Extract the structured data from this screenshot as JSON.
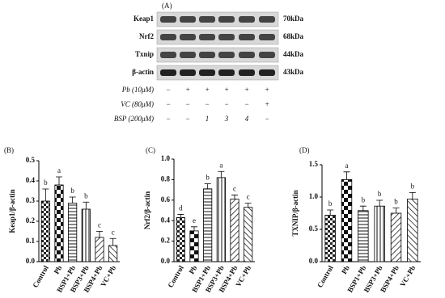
{
  "blot": {
    "panel": "(A)",
    "proteins": [
      {
        "name": "Keap1",
        "size": "70kDa"
      },
      {
        "name": "Nrf2",
        "size": "68kDa"
      },
      {
        "name": "Txnip",
        "size": "44kDa"
      },
      {
        "name": "β-actin",
        "size": "43kDa"
      }
    ],
    "treatments": [
      {
        "label": "Pb (10μM)",
        "signs": [
          "−",
          "+",
          "+",
          "+",
          "+",
          "+"
        ]
      },
      {
        "label": "VC (80μM)",
        "signs": [
          "−",
          "−",
          "−",
          "−",
          "−",
          "+"
        ]
      },
      {
        "label": "BSP (200μM)",
        "signs": [
          "−",
          "−",
          "1",
          "3",
          "4",
          "−"
        ]
      }
    ]
  },
  "chart_data": [
    {
      "type": "bar",
      "panel": "(B)",
      "y_label": "Keap1/β-actin",
      "categories": [
        "Control",
        "Pb",
        "BSP1+Pb",
        "BSP3+Pb",
        "BSP4+Pb",
        "VC+Pb"
      ],
      "values": [
        0.3,
        0.38,
        0.29,
        0.26,
        0.12,
        0.08
      ],
      "errors": [
        0.06,
        0.04,
        0.03,
        0.035,
        0.03,
        0.035
      ],
      "annotations": [
        "b",
        "a",
        "b",
        "b",
        "c",
        "c"
      ],
      "ylim": [
        0,
        0.5
      ],
      "yticks": [
        {
          "value": 0,
          "label": "0.0"
        },
        0.1,
        0.2,
        0.3,
        0.4,
        0.5
      ]
    },
    {
      "type": "bar",
      "panel": "(C)",
      "y_label": "Nrf2/β-actin",
      "categories": [
        "Control",
        "Pb",
        "BSP1+Pb",
        "BSP3+Pb",
        "BSP4+Pb",
        "VC+Pb"
      ],
      "values": [
        0.43,
        0.3,
        0.71,
        0.82,
        0.61,
        0.53
      ],
      "errors": [
        0.03,
        0.04,
        0.05,
        0.06,
        0.04,
        0.04
      ],
      "annotations": [
        "d",
        "e",
        "b",
        "a",
        "c",
        "c"
      ],
      "ylim": [
        0,
        1.0
      ],
      "yticks": [
        {
          "value": 0,
          "label": "0.0"
        },
        0.2,
        0.4,
        0.6,
        0.8,
        {
          "value": 1,
          "label": "1.0"
        }
      ]
    },
    {
      "type": "bar",
      "panel": "(D)",
      "y_label": "TXNIP/β-actin",
      "categories": [
        "Control",
        "Pb",
        "BSP1+Pb",
        "BSP3+Pb",
        "BSP4+Pb",
        "VC+Pb"
      ],
      "values": [
        0.72,
        1.27,
        0.79,
        0.86,
        0.75,
        0.97
      ],
      "errors": [
        0.08,
        0.12,
        0.07,
        0.09,
        0.08,
        0.1
      ],
      "annotations": [
        "b",
        "a",
        "b",
        "b",
        "b",
        "b"
      ],
      "ylim": [
        0,
        1.5
      ],
      "yticks": [
        {
          "value": 0,
          "label": "0.0"
        },
        0.5,
        {
          "value": 1,
          "label": "1.0"
        },
        1.5
      ]
    }
  ]
}
